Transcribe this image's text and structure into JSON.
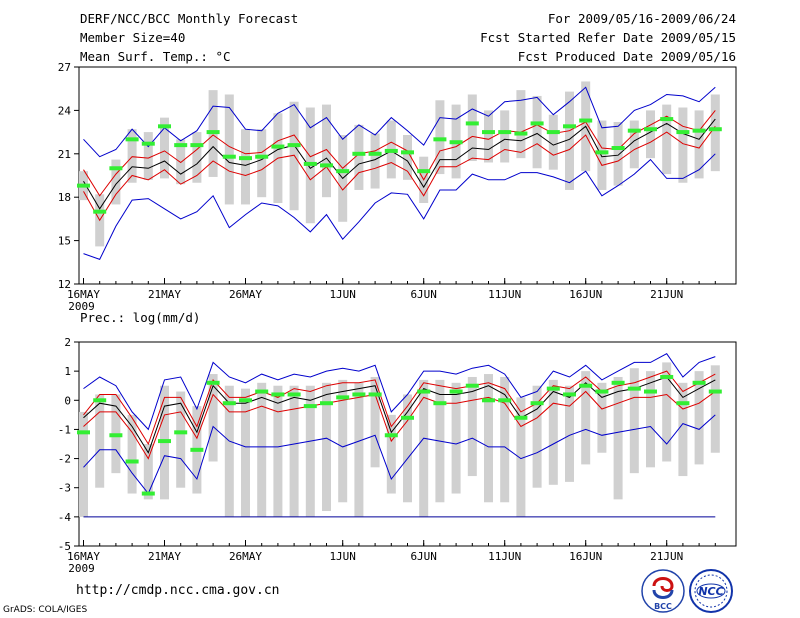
{
  "header": {
    "title": "DERF/NCC/BCC Monthly Forecast",
    "member_size": "Member Size=40",
    "variable": "Mean Surf. Temp.: °C",
    "period": "For 2009/05/16-2009/06/24",
    "started": "Fcst Started Refer Date 2009/05/15",
    "produced": "Fcst Produced Date 2009/05/16"
  },
  "footer": {
    "url": "http://cmdp.ncc.cma.gov.cn",
    "grads": "GrADS: COLA/IGES",
    "logo_bcc": "BCC",
    "logo_ncc": "NCC"
  },
  "colors": {
    "envelope": "#0000cc",
    "spread": "#dd0000",
    "mean": "#000000",
    "box": "#d0d0d0",
    "median": "#33ee33",
    "floor": "#000099"
  },
  "chart_data": [
    {
      "type": "box",
      "title": "Mean Surf. Temp.: °C",
      "ylim": [
        12,
        27
      ],
      "yticks": [
        12,
        15,
        18,
        21,
        24,
        27
      ],
      "xticks": [
        {
          "day": 1,
          "label": "16MAY",
          "sub": "2009"
        },
        {
          "day": 6,
          "label": "21MAY"
        },
        {
          "day": 11,
          "label": "26MAY"
        },
        {
          "day": 17,
          "label": "1JUN"
        },
        {
          "day": 22,
          "label": "6JUN"
        },
        {
          "day": 27,
          "label": "11JUN"
        },
        {
          "day": 32,
          "label": "16JUN"
        },
        {
          "day": 37,
          "label": "21JUN"
        }
      ],
      "days": 40,
      "series": [
        {
          "name": "max",
          "values": [
            22.0,
            20.8,
            21.3,
            22.7,
            21.5,
            22.8,
            21.9,
            22.6,
            24.3,
            24.2,
            22.7,
            22.6,
            23.8,
            24.4,
            22.8,
            23.5,
            22.0,
            23.0,
            22.3,
            23.5,
            22.6,
            21.6,
            23.5,
            23.4,
            24.1,
            23.6,
            24.6,
            24.7,
            24.9,
            23.7,
            24.6,
            25.6,
            22.8,
            22.9,
            24.0,
            24.4,
            25.1,
            25.0,
            24.6,
            25.6
          ]
        },
        {
          "name": "upper",
          "values": [
            19.9,
            18.1,
            19.6,
            20.8,
            20.7,
            21.2,
            20.4,
            21.3,
            22.3,
            21.5,
            21.0,
            21.1,
            21.9,
            22.3,
            20.8,
            21.3,
            20.0,
            21.0,
            21.2,
            21.8,
            21.2,
            19.2,
            21.2,
            21.5,
            22.2,
            22.0,
            22.6,
            22.5,
            23.0,
            22.4,
            22.6,
            23.2,
            21.4,
            21.3,
            22.4,
            23.0,
            23.6,
            22.9,
            22.6,
            24.0
          ]
        },
        {
          "name": "mean",
          "values": [
            19.1,
            17.2,
            18.9,
            20.1,
            20.0,
            20.5,
            19.6,
            20.3,
            21.5,
            20.4,
            20.2,
            20.6,
            21.3,
            21.6,
            20.0,
            20.7,
            19.3,
            20.3,
            20.6,
            21.2,
            20.5,
            18.7,
            20.6,
            20.6,
            21.4,
            21.3,
            22.0,
            21.9,
            22.4,
            21.6,
            22.0,
            22.9,
            20.8,
            20.9,
            21.9,
            22.5,
            23.1,
            22.4,
            22.0,
            23.4
          ]
        },
        {
          "name": "lower",
          "values": [
            18.4,
            16.4,
            18.2,
            19.5,
            19.2,
            19.9,
            18.9,
            19.5,
            20.5,
            19.8,
            19.5,
            19.9,
            20.7,
            20.9,
            19.2,
            20.1,
            18.5,
            19.7,
            20.0,
            20.4,
            19.8,
            18.1,
            20.1,
            20.1,
            20.7,
            20.6,
            21.3,
            21.1,
            21.7,
            20.9,
            21.3,
            22.3,
            20.2,
            20.5,
            21.3,
            21.8,
            22.5,
            21.7,
            21.4,
            22.9
          ]
        },
        {
          "name": "min",
          "values": [
            14.1,
            13.7,
            16.0,
            17.8,
            17.9,
            17.2,
            16.5,
            17.0,
            18.1,
            15.9,
            16.8,
            17.6,
            17.4,
            16.6,
            15.6,
            16.8,
            15.1,
            16.3,
            17.6,
            18.3,
            18.2,
            16.5,
            18.5,
            18.5,
            19.6,
            19.2,
            19.2,
            19.7,
            19.7,
            19.4,
            19.0,
            19.8,
            18.1,
            18.8,
            19.6,
            20.6,
            19.3,
            19.3,
            19.9,
            21.0
          ]
        },
        {
          "name": "box_low",
          "values": [
            17.8,
            14.6,
            17.5,
            19.0,
            19.2,
            19.3,
            18.9,
            19.0,
            19.4,
            17.5,
            17.5,
            18.0,
            17.6,
            17.1,
            16.2,
            18.0,
            16.3,
            18.5,
            18.6,
            19.3,
            19.2,
            17.6,
            19.6,
            19.3,
            20.5,
            20.4,
            20.4,
            20.7,
            20.0,
            19.9,
            18.5,
            19.8,
            18.5,
            18.8,
            20.0,
            20.7,
            19.6,
            19.0,
            19.3,
            19.8
          ]
        },
        {
          "name": "box_high",
          "values": [
            19.8,
            18.2,
            20.6,
            22.7,
            22.5,
            23.5,
            22.0,
            22.5,
            25.4,
            25.1,
            22.7,
            22.7,
            23.8,
            24.6,
            24.2,
            24.4,
            22.3,
            23.0,
            22.4,
            23.3,
            22.3,
            20.8,
            24.7,
            24.4,
            25.1,
            24.0,
            24.0,
            25.4,
            25.0,
            23.7,
            25.3,
            26.0,
            23.3,
            23.2,
            23.3,
            24.0,
            24.4,
            24.2,
            24.0,
            25.1
          ]
        },
        {
          "name": "median",
          "values": [
            18.8,
            17.0,
            20.0,
            22.0,
            21.7,
            22.9,
            21.6,
            21.6,
            22.5,
            20.8,
            20.7,
            20.8,
            21.5,
            21.6,
            20.3,
            20.2,
            19.8,
            21.0,
            21.0,
            21.2,
            21.1,
            19.8,
            22.0,
            21.8,
            23.1,
            22.5,
            22.5,
            22.4,
            23.1,
            22.5,
            22.9,
            23.3,
            21.1,
            21.4,
            22.6,
            22.7,
            23.4,
            22.5,
            22.6,
            22.7
          ]
        }
      ]
    },
    {
      "type": "box",
      "title": "Prec.: log(mm/d)",
      "ylim": [
        -5,
        2
      ],
      "yticks": [
        -5,
        -4,
        -3,
        -2,
        -1,
        0,
        1,
        2
      ],
      "floor": -4,
      "xticks": [
        {
          "day": 1,
          "label": "16MAY",
          "sub": "2009"
        },
        {
          "day": 6,
          "label": "21MAY"
        },
        {
          "day": 11,
          "label": "26MAY"
        },
        {
          "day": 17,
          "label": "1JUN"
        },
        {
          "day": 22,
          "label": "6JUN"
        },
        {
          "day": 27,
          "label": "11JUN"
        },
        {
          "day": 32,
          "label": "16JUN"
        },
        {
          "day": 37,
          "label": "21JUN"
        }
      ],
      "days": 40,
      "series": [
        {
          "name": "max",
          "values": [
            0.4,
            0.8,
            0.5,
            -0.4,
            -1.0,
            0.7,
            0.8,
            -0.3,
            1.3,
            0.8,
            0.6,
            0.9,
            0.7,
            0.9,
            0.8,
            1.0,
            1.1,
            1.0,
            1.2,
            -0.4,
            0.2,
            1.0,
            1.0,
            0.9,
            1.1,
            1.2,
            0.9,
            0.1,
            0.3,
            1.0,
            0.8,
            1.2,
            0.7,
            1.0,
            1.3,
            1.3,
            1.6,
            0.8,
            1.3,
            1.5
          ]
        },
        {
          "name": "upper",
          "values": [
            -0.5,
            0.2,
            0.2,
            -0.6,
            -1.5,
            0.1,
            0.1,
            -0.9,
            0.7,
            0.1,
            0.1,
            0.3,
            0.1,
            0.4,
            0.3,
            0.5,
            0.6,
            0.6,
            0.7,
            -0.9,
            -0.2,
            0.6,
            0.5,
            0.4,
            0.5,
            0.6,
            0.4,
            -0.4,
            -0.1,
            0.5,
            0.4,
            0.8,
            0.3,
            0.5,
            0.6,
            0.8,
            1.0,
            0.3,
            0.6,
            0.9
          ]
        },
        {
          "name": "mean",
          "values": [
            -0.6,
            -0.1,
            -0.2,
            -0.9,
            -1.8,
            -0.2,
            -0.1,
            -1.1,
            0.5,
            -0.1,
            -0.1,
            0.1,
            -0.1,
            0.1,
            0.0,
            0.2,
            0.3,
            0.4,
            0.5,
            -1.1,
            -0.4,
            0.4,
            0.2,
            0.2,
            0.3,
            0.5,
            0.2,
            -0.6,
            -0.3,
            0.3,
            0.1,
            0.6,
            0.1,
            0.3,
            0.4,
            0.6,
            0.8,
            0.1,
            0.4,
            0.7
          ]
        },
        {
          "name": "lower",
          "values": [
            -0.9,
            -0.4,
            -0.4,
            -1.1,
            -2.0,
            -0.5,
            -0.4,
            -1.3,
            0.2,
            -0.4,
            -0.4,
            -0.2,
            -0.4,
            -0.3,
            -0.2,
            -0.1,
            0.0,
            0.1,
            0.2,
            -1.4,
            -0.7,
            0.1,
            -0.1,
            -0.1,
            0.0,
            0.1,
            -0.1,
            -0.9,
            -0.6,
            -0.1,
            -0.2,
            0.3,
            -0.3,
            -0.1,
            0.1,
            0.1,
            0.2,
            -0.3,
            -0.1,
            0.3
          ]
        },
        {
          "name": "min",
          "values": [
            -2.3,
            -1.7,
            -1.7,
            -2.5,
            -3.2,
            -1.9,
            -2.0,
            -2.7,
            -0.9,
            -1.4,
            -1.6,
            -1.6,
            -1.6,
            -1.5,
            -1.4,
            -1.3,
            -1.6,
            -1.4,
            -1.2,
            -2.7,
            -2.0,
            -1.3,
            -1.4,
            -1.5,
            -1.3,
            -1.6,
            -1.6,
            -2.0,
            -1.8,
            -1.5,
            -1.2,
            -1.0,
            -1.2,
            -1.1,
            -1.0,
            -0.9,
            -1.5,
            -0.8,
            -1.0,
            -0.5
          ]
        },
        {
          "name": "box_low",
          "values": [
            -4.0,
            -3.0,
            -2.5,
            -3.2,
            -3.4,
            -3.4,
            -3.0,
            -3.2,
            -2.1,
            -4.0,
            -4.0,
            -4.0,
            -4.0,
            -4.0,
            -4.0,
            -3.8,
            -3.5,
            -4.0,
            -2.3,
            -3.2,
            -3.5,
            -4.0,
            -3.5,
            -3.2,
            -2.6,
            -3.5,
            -3.5,
            -4.0,
            -3.0,
            -2.9,
            -2.8,
            -2.2,
            -1.8,
            -3.4,
            -2.5,
            -2.3,
            -2.1,
            -2.6,
            -2.2,
            -1.8
          ]
        },
        {
          "name": "box_high",
          "values": [
            -0.4,
            0.2,
            0.2,
            -0.5,
            -1.5,
            0.5,
            0.3,
            -0.2,
            0.9,
            0.5,
            0.4,
            0.6,
            0.5,
            0.5,
            0.5,
            0.6,
            0.7,
            0.6,
            0.8,
            -0.5,
            0.2,
            0.7,
            0.7,
            0.6,
            0.8,
            0.9,
            0.8,
            0.1,
            0.5,
            0.7,
            0.5,
            1.0,
            0.6,
            0.8,
            1.1,
            1.0,
            1.3,
            0.6,
            1.0,
            1.2
          ]
        },
        {
          "name": "median",
          "values": [
            -1.1,
            0.0,
            -1.2,
            -2.1,
            -3.2,
            -1.4,
            -1.1,
            -1.7,
            0.6,
            -0.1,
            0.0,
            0.3,
            0.2,
            0.2,
            -0.2,
            -0.1,
            0.1,
            0.2,
            0.2,
            -1.2,
            -0.6,
            0.3,
            -0.1,
            0.3,
            0.5,
            0.0,
            0.0,
            -0.6,
            -0.1,
            0.4,
            0.2,
            0.5,
            0.3,
            0.6,
            0.4,
            0.3,
            0.8,
            -0.1,
            0.6,
            0.3
          ]
        }
      ]
    }
  ]
}
